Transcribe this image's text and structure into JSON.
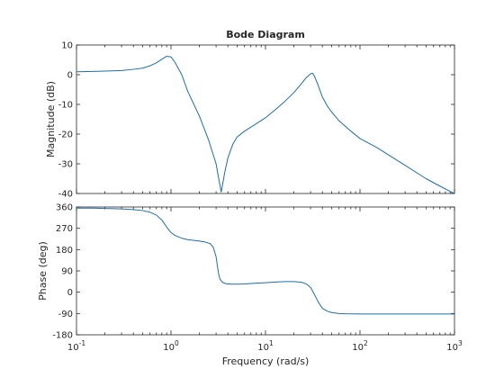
{
  "chart_data": {
    "type": "line",
    "title": "Bode Diagram",
    "xlabel": "Frequency  (rad/s)",
    "xscale": "log",
    "xlim": [
      0.1,
      1000
    ],
    "x_ticks": [
      {
        "value": 0.1,
        "base": "10",
        "exp": "-1"
      },
      {
        "value": 1,
        "base": "10",
        "exp": "0"
      },
      {
        "value": 10,
        "base": "10",
        "exp": "1"
      },
      {
        "value": 100,
        "base": "10",
        "exp": "2"
      },
      {
        "value": 1000,
        "base": "10",
        "exp": "3"
      }
    ],
    "grid": false,
    "series_color": "#1f6ea6",
    "subplots": [
      {
        "name": "magnitude",
        "ylabel": "Magnitude (dB)",
        "ylim": [
          -40,
          10
        ],
        "yticks": [
          10,
          0,
          -10,
          -20,
          -30,
          -40
        ],
        "ytick_labels": [
          "10",
          "0",
          "-10",
          "-20",
          "-30",
          "-40"
        ],
        "x": [
          0.1,
          0.15,
          0.2,
          0.3,
          0.4,
          0.5,
          0.6,
          0.7,
          0.8,
          0.9,
          1.0,
          1.1,
          1.3,
          1.5,
          2.0,
          2.5,
          3.0,
          3.2,
          3.4,
          3.7,
          4.0,
          4.5,
          5.0,
          6.0,
          8.0,
          10,
          13,
          16,
          20,
          24,
          27,
          30,
          31.6,
          33,
          36,
          40,
          45,
          50,
          60,
          80,
          100,
          150,
          200,
          300,
          500,
          700,
          900,
          1000
        ],
        "y": [
          1,
          1.1,
          1.2,
          1.4,
          1.8,
          2.2,
          3.0,
          4.0,
          5.2,
          6.2,
          6.0,
          4.2,
          0.0,
          -5.5,
          -14,
          -22,
          -30,
          -35,
          -39.5,
          -33,
          -28,
          -23.5,
          -21,
          -19,
          -16.5,
          -14.5,
          -11.5,
          -9,
          -6,
          -3,
          -1,
          0.3,
          0.5,
          -0.5,
          -3.5,
          -7.5,
          -10.5,
          -12.5,
          -15.5,
          -19,
          -21.5,
          -24.5,
          -27,
          -30.5,
          -35,
          -37.5,
          -39.3,
          -40
        ]
      },
      {
        "name": "phase",
        "ylabel": "Phase (deg)",
        "ylim": [
          -180,
          360
        ],
        "yticks": [
          360,
          270,
          180,
          90,
          0,
          -90,
          -180
        ],
        "ytick_labels": [
          "360",
          "270",
          "180",
          "90",
          "0",
          "-90",
          "-180"
        ],
        "x": [
          0.1,
          0.15,
          0.2,
          0.3,
          0.4,
          0.5,
          0.6,
          0.7,
          0.8,
          0.9,
          1.0,
          1.1,
          1.3,
          1.5,
          2.0,
          2.3,
          2.6,
          2.8,
          3.0,
          3.1,
          3.2,
          3.3,
          3.5,
          3.8,
          4.0,
          4.5,
          5.0,
          6.0,
          8.0,
          10,
          13,
          16,
          20,
          24,
          27,
          30,
          33,
          36,
          40,
          45,
          50,
          60,
          70,
          100,
          200,
          500,
          1000
        ],
        "y": [
          355,
          355,
          354,
          352,
          349,
          345,
          338,
          326,
          305,
          275,
          252,
          240,
          228,
          222,
          216,
          212,
          205,
          190,
          150,
          110,
          75,
          55,
          42,
          36,
          35,
          34,
          34,
          35,
          38,
          40,
          43,
          45,
          45,
          42,
          35,
          20,
          -10,
          -40,
          -68,
          -80,
          -86,
          -90,
          -91,
          -92,
          -92,
          -92,
          -92
        ]
      }
    ]
  }
}
